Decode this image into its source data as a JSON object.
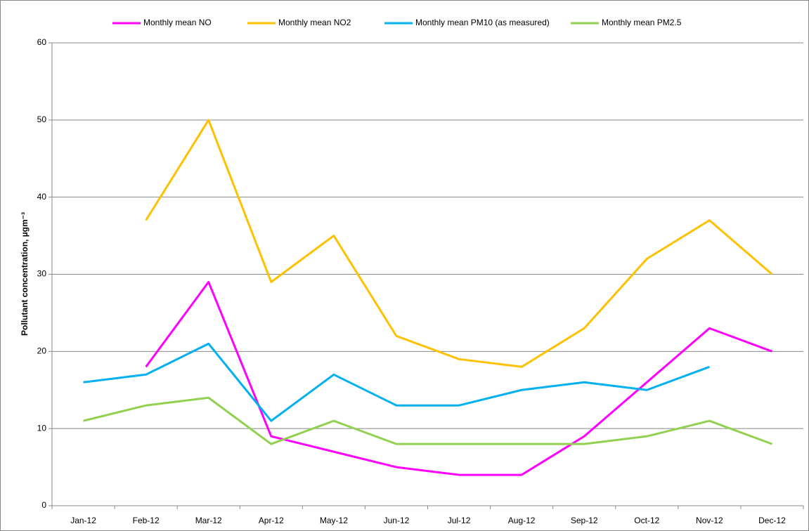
{
  "chart_data": {
    "type": "line",
    "ylabel": "Pollutant concentration, µgm⁻³",
    "categories": [
      "Jan-12",
      "Feb-12",
      "Mar-12",
      "Apr-12",
      "May-12",
      "Jun-12",
      "Jul-12",
      "Aug-12",
      "Sep-12",
      "Oct-12",
      "Nov-12",
      "Dec-12"
    ],
    "series": [
      {
        "name": "Monthly mean NO",
        "color": "#ff00ff",
        "values": [
          null,
          18,
          29,
          9,
          7,
          5,
          4,
          4,
          9,
          16,
          23,
          20
        ]
      },
      {
        "name": "Monthly mean NO2",
        "color": "#ffc000",
        "values": [
          null,
          37,
          50,
          29,
          35,
          22,
          19,
          18,
          23,
          32,
          37,
          30
        ]
      },
      {
        "name": "Monthly mean PM10 (as measured)",
        "color": "#00b0f0",
        "values": [
          16,
          17,
          21,
          11,
          17,
          13,
          13,
          15,
          16,
          15,
          18,
          null
        ]
      },
      {
        "name": "Monthly mean PM2.5",
        "color": "#92d050",
        "values": [
          11,
          13,
          14,
          8,
          11,
          8,
          8,
          8,
          8,
          9,
          11,
          8
        ]
      }
    ],
    "ylim": [
      0,
      60
    ],
    "yticks": [
      0,
      10,
      20,
      30,
      40,
      50,
      60
    ],
    "grid": true,
    "legend": "top"
  }
}
